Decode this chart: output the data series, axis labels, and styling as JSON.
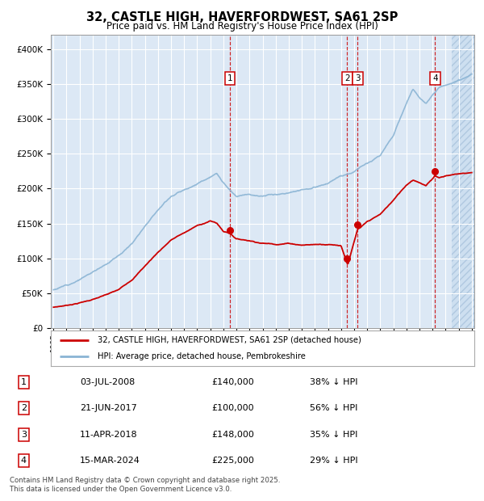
{
  "title_line1": "32, CASTLE HIGH, HAVERFORDWEST, SA61 2SP",
  "title_line2": "Price paid vs. HM Land Registry's House Price Index (HPI)",
  "xlim_start": 1995.0,
  "xlim_end": 2027.0,
  "ylim_min": 0,
  "ylim_max": 420000,
  "hpi_color": "#8ab4d4",
  "price_color": "#cc0000",
  "background_color": "#dce8f5",
  "hatch_region_start": 2025.5,
  "grid_color": "#ffffff",
  "transactions": [
    {
      "num": 1,
      "date_dec": 2008.5,
      "price": 140000,
      "label": "03-JUL-2008",
      "pct": "38% ↓ HPI"
    },
    {
      "num": 2,
      "date_dec": 2017.47,
      "price": 100000,
      "label": "21-JUN-2017",
      "pct": "56% ↓ HPI"
    },
    {
      "num": 3,
      "date_dec": 2018.27,
      "price": 148000,
      "label": "11-APR-2018",
      "pct": "35% ↓ HPI"
    },
    {
      "num": 4,
      "date_dec": 2024.2,
      "price": 225000,
      "label": "15-MAR-2024",
      "pct": "29% ↓ HPI"
    }
  ],
  "legend_line1": "32, CASTLE HIGH, HAVERFORDWEST, SA61 2SP (detached house)",
  "legend_line2": "HPI: Average price, detached house, Pembrokeshire",
  "footer_line1": "Contains HM Land Registry data © Crown copyright and database right 2025.",
  "footer_line2": "This data is licensed under the Open Government Licence v3.0."
}
